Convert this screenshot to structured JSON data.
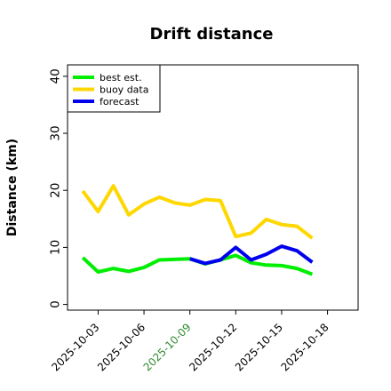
{
  "chart_data": {
    "type": "line",
    "title": "Drift distance",
    "xlabel": "",
    "ylabel": "Distance (km)",
    "ylim": [
      -1,
      42
    ],
    "yticks": [
      0,
      10,
      20,
      30,
      40
    ],
    "xlim": [
      "2025-10-01",
      "2025-10-20"
    ],
    "xticks": [
      {
        "date": "2025-10-03",
        "label": "2025-10-03",
        "color": "#000000"
      },
      {
        "date": "2025-10-06",
        "label": "2025-10-06",
        "color": "#000000"
      },
      {
        "date": "2025-10-09",
        "label": "2025-10-09",
        "color": "#2e8b2e"
      },
      {
        "date": "2025-10-12",
        "label": "2025-10-12",
        "color": "#000000"
      },
      {
        "date": "2025-10-15",
        "label": "2025-10-15",
        "color": "#000000"
      },
      {
        "date": "2025-10-18",
        "label": "2025-10-18",
        "color": "#000000"
      }
    ],
    "grid": false,
    "legend_position": "top-left",
    "series": [
      {
        "name": "best est.",
        "color": "#00ee00",
        "points": [
          [
            "2025-10-02",
            8.2
          ],
          [
            "2025-10-03",
            5.7
          ],
          [
            "2025-10-04",
            6.3
          ],
          [
            "2025-10-05",
            5.8
          ],
          [
            "2025-10-06",
            6.5
          ],
          [
            "2025-10-07",
            7.8
          ],
          [
            "2025-10-08",
            7.9
          ],
          [
            "2025-10-09",
            8.0
          ],
          [
            "2025-10-10",
            7.1
          ],
          [
            "2025-10-11",
            7.8
          ],
          [
            "2025-10-12",
            8.6
          ],
          [
            "2025-10-13",
            7.3
          ],
          [
            "2025-10-14",
            6.9
          ],
          [
            "2025-10-15",
            6.8
          ],
          [
            "2025-10-16",
            6.3
          ],
          [
            "2025-10-17",
            5.3
          ]
        ]
      },
      {
        "name": "buoy data",
        "color": "#ffd700",
        "points": [
          [
            "2025-10-02",
            19.9
          ],
          [
            "2025-10-03",
            16.3
          ],
          [
            "2025-10-04",
            20.8
          ],
          [
            "2025-10-05",
            15.7
          ],
          [
            "2025-10-06",
            17.6
          ],
          [
            "2025-10-07",
            18.8
          ],
          [
            "2025-10-08",
            17.8
          ],
          [
            "2025-10-09",
            17.4
          ],
          [
            "2025-10-10",
            18.4
          ],
          [
            "2025-10-11",
            18.2
          ],
          [
            "2025-10-12",
            11.9
          ],
          [
            "2025-10-13",
            12.5
          ],
          [
            "2025-10-14",
            14.9
          ],
          [
            "2025-10-15",
            14.0
          ],
          [
            "2025-10-16",
            13.7
          ],
          [
            "2025-10-17",
            11.6
          ]
        ]
      },
      {
        "name": "forecast",
        "color": "#0000ee",
        "points": [
          [
            "2025-10-09",
            8.0
          ],
          [
            "2025-10-10",
            7.2
          ],
          [
            "2025-10-11",
            7.8
          ],
          [
            "2025-10-12",
            10.0
          ],
          [
            "2025-10-13",
            7.8
          ],
          [
            "2025-10-14",
            8.8
          ],
          [
            "2025-10-15",
            10.2
          ],
          [
            "2025-10-16",
            9.4
          ],
          [
            "2025-10-17",
            7.4
          ]
        ]
      }
    ]
  }
}
